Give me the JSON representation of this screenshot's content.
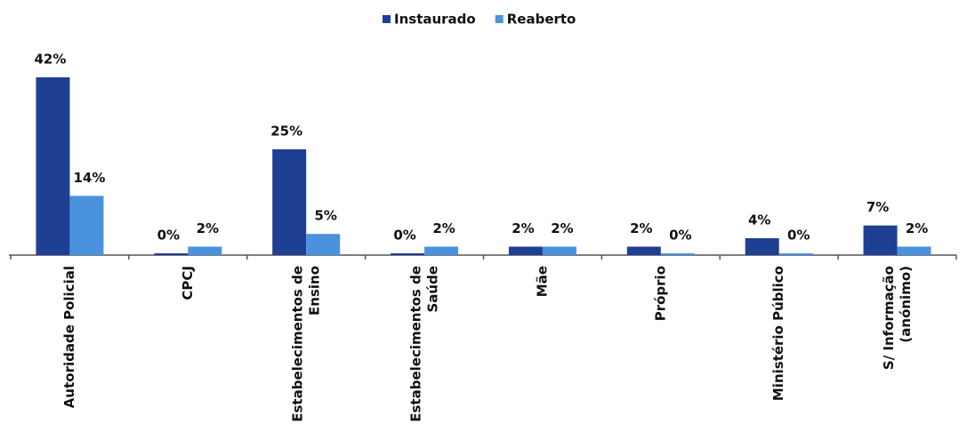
{
  "chart_data": {
    "type": "bar",
    "categories": [
      "Autoridade Policial",
      "CPCJ",
      "Estabelecimentos de Ensino",
      "Estabelecimentos de Saúde",
      "Mãe",
      "Próprio",
      "Ministério Público",
      "S/ Informação (anónimo)"
    ],
    "series": [
      {
        "name": "Instaurado",
        "color": "#1f3f93",
        "values": [
          42,
          0,
          25,
          0,
          2,
          2,
          4,
          7
        ],
        "value_labels": [
          "42%",
          "0%",
          "25%",
          "0%",
          "2%",
          "2%",
          "4%",
          "7%"
        ]
      },
      {
        "name": "Reaberto",
        "color": "#4b92de",
        "values": [
          14,
          2,
          5,
          2,
          2,
          0,
          0,
          2
        ],
        "value_labels": [
          "14%",
          "2%",
          "5%",
          "2%",
          "2%",
          "0%",
          "0%",
          "2%"
        ]
      }
    ],
    "legend": "top"
  }
}
